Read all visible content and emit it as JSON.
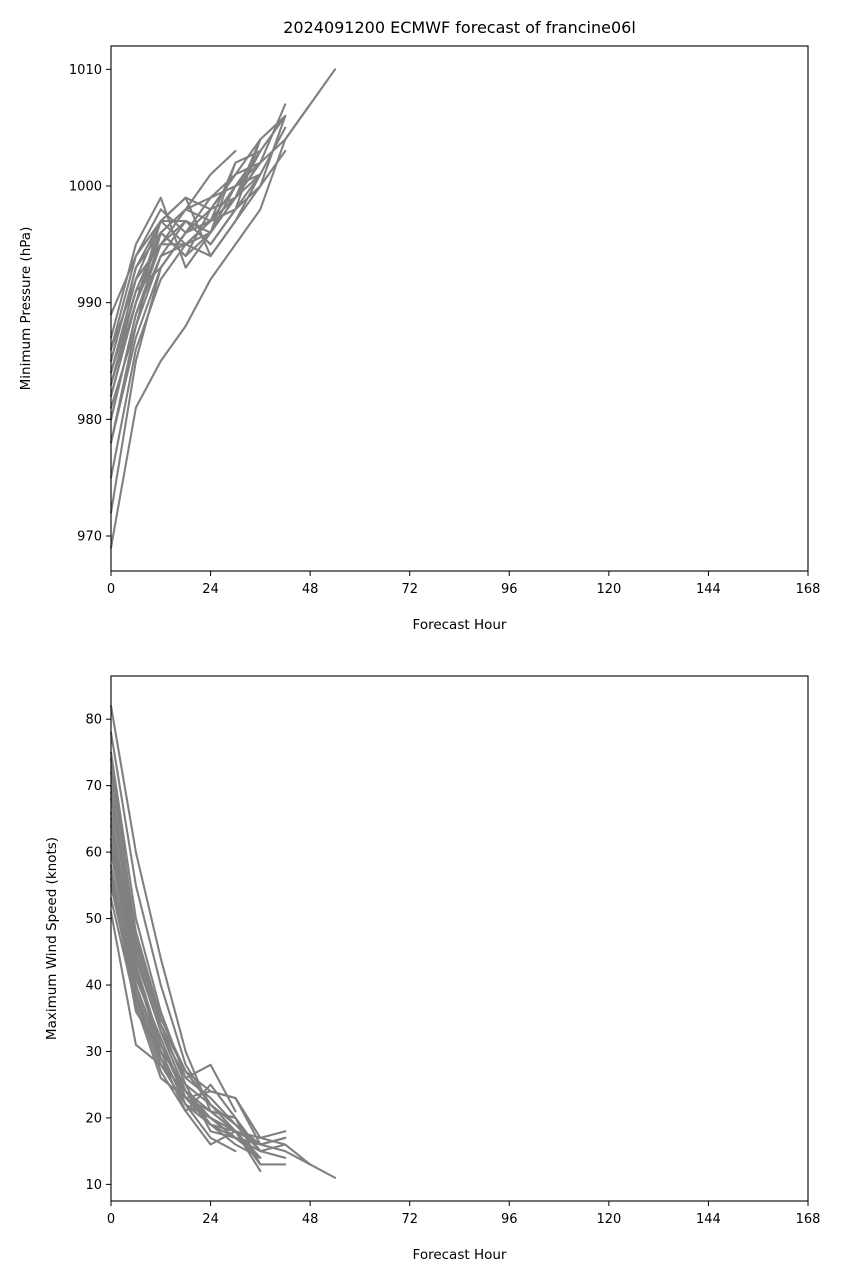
{
  "chart_data": [
    {
      "type": "line",
      "title": "2024091200 ECMWF forecast of francine06l",
      "xlabel": "Forecast Hour",
      "ylabel": "Minimum Pressure (hPa)",
      "xlim": [
        0,
        168
      ],
      "ylim": [
        967,
        1012
      ],
      "xticks": [
        0,
        24,
        48,
        72,
        96,
        120,
        144,
        168
      ],
      "yticks": [
        970,
        980,
        990,
        1000,
        1010
      ],
      "grid": false,
      "color": "#808080",
      "series": [
        {
          "x": [
            0,
            6,
            12,
            18,
            24,
            30,
            36,
            42,
            48,
            54
          ],
          "values": [
            969,
            981,
            985,
            988,
            992,
            995,
            998,
            1004,
            1007,
            1010
          ]
        },
        {
          "x": [
            0,
            6,
            12,
            18,
            24,
            30,
            36,
            42,
            48
          ],
          "values": [
            972,
            985,
            993,
            996,
            997,
            999,
            1002,
            1004,
            1007
          ]
        },
        {
          "x": [
            0,
            6,
            12,
            18,
            24,
            30
          ],
          "values": [
            978,
            988,
            996,
            998,
            1001,
            1003
          ]
        },
        {
          "x": [
            0,
            6,
            12,
            18,
            24,
            30,
            36,
            42
          ],
          "values": [
            980,
            989,
            995,
            995,
            994,
            997,
            1000,
            1003
          ]
        },
        {
          "x": [
            0,
            6,
            12,
            18,
            24,
            30,
            36
          ],
          "values": [
            982,
            990,
            997,
            999,
            998,
            1001,
            1004
          ]
        },
        {
          "x": [
            0,
            6,
            12,
            18,
            24,
            30,
            36,
            42
          ],
          "values": [
            983,
            991,
            996,
            994,
            996,
            999,
            1003,
            1006
          ]
        },
        {
          "x": [
            0,
            6,
            12,
            18,
            24,
            30,
            36
          ],
          "values": [
            984,
            992,
            997,
            997,
            995,
            998,
            1001
          ]
        },
        {
          "x": [
            0,
            6,
            12,
            18,
            24,
            30,
            36,
            42
          ],
          "values": [
            985,
            993,
            996,
            998,
            999,
            1000,
            1002,
            1007
          ]
        },
        {
          "x": [
            0,
            6,
            12,
            18,
            24,
            30,
            36
          ],
          "values": [
            986,
            994,
            998,
            996,
            997,
            1002,
            1003
          ]
        },
        {
          "x": [
            0,
            6,
            12,
            18,
            24,
            30
          ],
          "values": [
            987,
            995,
            999,
            993,
            996,
            1002
          ]
        },
        {
          "x": [
            0,
            6,
            12,
            18,
            24,
            30,
            36
          ],
          "values": [
            989,
            994,
            997,
            999,
            994,
            997,
            1001
          ]
        },
        {
          "x": [
            0,
            6,
            12,
            18,
            24,
            30,
            36,
            42
          ],
          "values": [
            975,
            986,
            992,
            995,
            997,
            999,
            1001,
            1005
          ]
        },
        {
          "x": [
            0,
            6,
            12,
            18,
            24,
            30,
            36
          ],
          "values": [
            978,
            987,
            993,
            996,
            998,
            999,
            1004
          ]
        },
        {
          "x": [
            0,
            6,
            12,
            18,
            24,
            30,
            36
          ],
          "values": [
            981,
            988,
            994,
            995,
            996,
            1000,
            1003
          ]
        },
        {
          "x": [
            0,
            6,
            12,
            18,
            24,
            30,
            36,
            42
          ],
          "values": [
            983,
            990,
            995,
            997,
            995,
            998,
            1000,
            1006
          ]
        },
        {
          "x": [
            0,
            6,
            12,
            18,
            24,
            30,
            36
          ],
          "values": [
            984,
            991,
            993,
            996,
            999,
            1001,
            1002
          ]
        },
        {
          "x": [
            0,
            6,
            12,
            18,
            24,
            30,
            36,
            42
          ],
          "values": [
            986,
            992,
            995,
            998,
            997,
            998,
            1004,
            1006
          ]
        },
        {
          "x": [
            0,
            6,
            12,
            18,
            24,
            30
          ],
          "values": [
            982,
            990,
            996,
            994,
            998,
            1001
          ]
        },
        {
          "x": [
            0,
            6,
            12,
            18,
            24,
            30,
            36
          ],
          "values": [
            980,
            989,
            994,
            997,
            996,
            999,
            1002
          ]
        },
        {
          "x": [
            0,
            6,
            12,
            18,
            24,
            30,
            36
          ],
          "values": [
            985,
            993,
            997,
            995,
            997,
            1000,
            1001
          ]
        }
      ]
    },
    {
      "type": "line",
      "title": "",
      "xlabel": "Forecast Hour",
      "ylabel": "Maximum Wind Speed (knots)",
      "xlim": [
        0,
        168
      ],
      "ylim": [
        7.5,
        86.5
      ],
      "xticks": [
        0,
        24,
        48,
        72,
        96,
        120,
        144,
        168
      ],
      "yticks": [
        10,
        20,
        30,
        40,
        50,
        60,
        70,
        80
      ],
      "grid": false,
      "color": "#808080",
      "series": [
        {
          "x": [
            0,
            6,
            12,
            18,
            24,
            30,
            36,
            42,
            48,
            54
          ],
          "values": [
            82,
            60,
            44,
            30,
            21,
            18,
            17,
            16,
            13,
            11
          ]
        },
        {
          "x": [
            0,
            6,
            12,
            18,
            24,
            30,
            36,
            42,
            48
          ],
          "values": [
            78,
            55,
            40,
            28,
            22,
            19,
            16,
            15,
            13
          ]
        },
        {
          "x": [
            0,
            6,
            12,
            18,
            24,
            30
          ],
          "values": [
            75,
            50,
            36,
            26,
            28,
            21
          ]
        },
        {
          "x": [
            0,
            6,
            12,
            18,
            24,
            30,
            36,
            42
          ],
          "values": [
            72,
            48,
            35,
            27,
            24,
            23,
            17,
            18
          ]
        },
        {
          "x": [
            0,
            6,
            12,
            18,
            24,
            30,
            36
          ],
          "values": [
            70,
            46,
            34,
            25,
            22,
            19,
            15
          ]
        },
        {
          "x": [
            0,
            6,
            12,
            18,
            24,
            30,
            36,
            42
          ],
          "values": [
            68,
            45,
            33,
            24,
            21,
            18,
            16,
            17
          ]
        },
        {
          "x": [
            0,
            6,
            12,
            18,
            24,
            30,
            36
          ],
          "values": [
            65,
            43,
            31,
            23,
            19,
            17,
            14
          ]
        },
        {
          "x": [
            0,
            6,
            12,
            18,
            24,
            30,
            36,
            42
          ],
          "values": [
            62,
            42,
            30,
            22,
            20,
            17,
            15,
            16
          ]
        },
        {
          "x": [
            0,
            6,
            12,
            18,
            24,
            30,
            36
          ],
          "values": [
            60,
            40,
            29,
            21,
            25,
            20,
            13
          ]
        },
        {
          "x": [
            0,
            6,
            12,
            18,
            24,
            30
          ],
          "values": [
            58,
            39,
            28,
            22,
            17,
            15
          ]
        },
        {
          "x": [
            0,
            6,
            12,
            18,
            24,
            30,
            36
          ],
          "values": [
            55,
            38,
            27,
            21,
            16,
            18,
            12
          ]
        },
        {
          "x": [
            0,
            6,
            12,
            18,
            24,
            30,
            36,
            42
          ],
          "values": [
            53,
            37,
            26,
            23,
            20,
            18,
            13,
            13
          ]
        },
        {
          "x": [
            0,
            6,
            12,
            18,
            24,
            30,
            36
          ],
          "values": [
            51,
            31,
            28,
            24,
            19,
            16,
            14
          ]
        },
        {
          "x": [
            0,
            6,
            12,
            18,
            24,
            30,
            36
          ],
          "values": [
            57,
            36,
            30,
            25,
            18,
            17,
            16
          ]
        },
        {
          "x": [
            0,
            6,
            12,
            18,
            24,
            30,
            36,
            42
          ],
          "values": [
            64,
            41,
            32,
            23,
            21,
            20,
            15,
            14
          ]
        },
        {
          "x": [
            0,
            6,
            12,
            18,
            24,
            30,
            36
          ],
          "values": [
            69,
            44,
            33,
            26,
            23,
            19,
            15
          ]
        },
        {
          "x": [
            0,
            6,
            12,
            18,
            24,
            30,
            36,
            42
          ],
          "values": [
            74,
            47,
            34,
            27,
            22,
            18,
            16,
            17
          ]
        },
        {
          "x": [
            0,
            6,
            12,
            18,
            24,
            30
          ],
          "values": [
            66,
            43,
            31,
            24,
            20,
            17
          ]
        },
        {
          "x": [
            0,
            6,
            12,
            18,
            24,
            30,
            36
          ],
          "values": [
            61,
            40,
            30,
            22,
            19,
            18,
            14
          ]
        },
        {
          "x": [
            0,
            6,
            12,
            18,
            24,
            30,
            36
          ],
          "values": [
            56,
            38,
            29,
            23,
            24,
            23,
            16
          ]
        }
      ]
    }
  ]
}
